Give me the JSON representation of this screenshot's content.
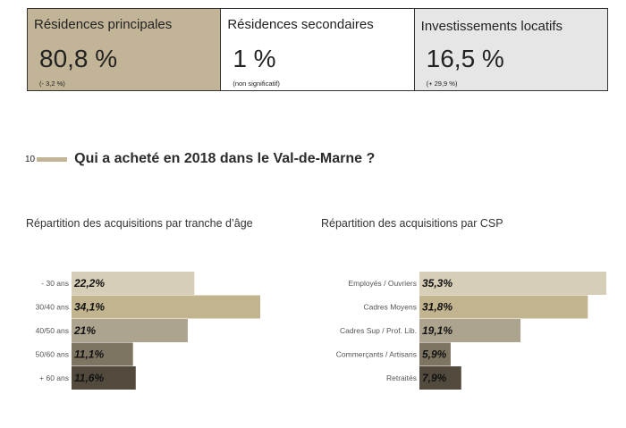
{
  "stats": [
    {
      "label": "Résidences principales",
      "value": "80,8 %",
      "note": "(- 3,2 %)",
      "color": "#c2b496"
    },
    {
      "label": "Résidences secondaires",
      "value": "1 %",
      "note": "(non significatif)",
      "color": "#ffffff"
    },
    {
      "label": "Investissements locatifs",
      "value": "16,5 %",
      "note": "(+ 29,9 %)",
      "color": "#e6e6e6"
    }
  ],
  "section": {
    "number": "10",
    "title": "Qui a acheté en 2018 dans le Val-de-Marne ?"
  },
  "chart_data": [
    {
      "type": "bar",
      "orientation": "horizontal",
      "title": "Répartition des acquisitions par tranche d’âge",
      "categories": [
        "- 30 ans",
        "30/40 ans",
        "40/50 ans",
        "50/60 ans",
        "+ 60 ans"
      ],
      "values": [
        22.2,
        34.1,
        21,
        11.1,
        11.6
      ],
      "value_labels": [
        "22,2%",
        "34,1%",
        "21%",
        "11,1%",
        "11,6%"
      ],
      "colors": [
        "#d6ceb7",
        "#c2b48f",
        "#ada48f",
        "#7d7462",
        "#514a3d"
      ],
      "xlim": [
        0,
        34.1
      ],
      "grid": false
    },
    {
      "type": "bar",
      "orientation": "horizontal",
      "title": "Répartition des acquisitions par CSP",
      "categories": [
        "Employés / Ouvriers",
        "Cadres Moyens",
        "Cadres Sup / Prof. Lib.",
        "Commerçants / Artisans",
        "Retraités"
      ],
      "values": [
        35.3,
        31.8,
        19.1,
        5.9,
        7.9
      ],
      "value_labels": [
        "35,3%",
        "31,8%",
        "19,1%",
        "5,9%",
        "7,9%"
      ],
      "colors": [
        "#d6ceb7",
        "#c2b48f",
        "#ada48f",
        "#7d7462",
        "#514a3d"
      ],
      "xlim": [
        0,
        35.3
      ],
      "grid": false
    }
  ]
}
